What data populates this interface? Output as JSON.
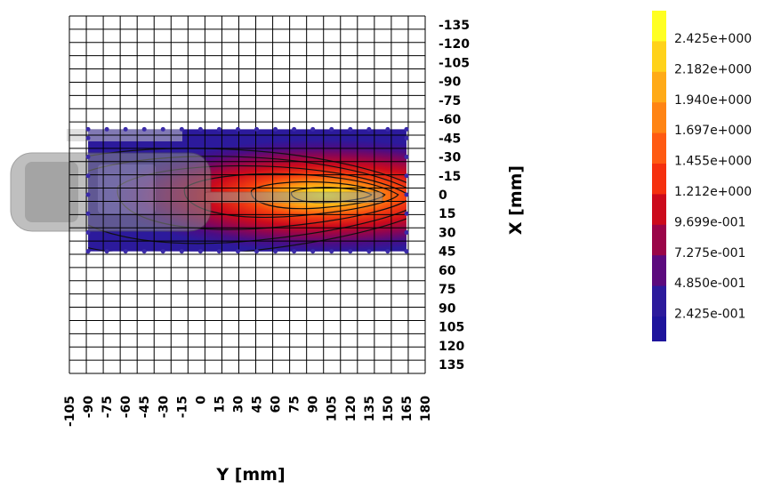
{
  "chart_data": {
    "type": "heatmap",
    "title": "",
    "xlabel": "Y [mm]",
    "ylabel": "X [mm]",
    "x_ticks": [
      "-105",
      "-90",
      "-75",
      "-60",
      "-45",
      "-30",
      "-15",
      "0",
      "15",
      "30",
      "45",
      "60",
      "75",
      "90",
      "105",
      "120",
      "135",
      "150",
      "165",
      "180"
    ],
    "y_ticks": [
      "-135",
      "-120",
      "-105",
      "-90",
      "-75",
      "-60",
      "-45",
      "-30",
      "-15",
      "0",
      "15",
      "30",
      "45",
      "60",
      "75",
      "90",
      "105",
      "120",
      "135"
    ],
    "xlim": [
      -105,
      180
    ],
    "ylim": [
      -142,
      142
    ],
    "scan_area": {
      "y_range": [
        -90,
        165
      ],
      "x_range": [
        -52,
        45
      ]
    },
    "peak": {
      "y": 105,
      "x": 0,
      "value": 2.6
    },
    "colorbar": {
      "labels": [
        "2.425e+000",
        "2.182e+000",
        "1.940e+000",
        "1.697e+000",
        "1.455e+000",
        "1.212e+000",
        "9.699e-001",
        "7.275e-001",
        "4.850e-001",
        "2.425e-001"
      ],
      "colors": [
        "#ffff22",
        "#ffd21a",
        "#ffaa17",
        "#ff8414",
        "#ff5a12",
        "#f5300e",
        "#cc0a1c",
        "#9a0548",
        "#5c0a7e",
        "#2c1a9c"
      ],
      "bottom_color": "#1e149c"
    },
    "grid": true,
    "legend_position": "right"
  }
}
